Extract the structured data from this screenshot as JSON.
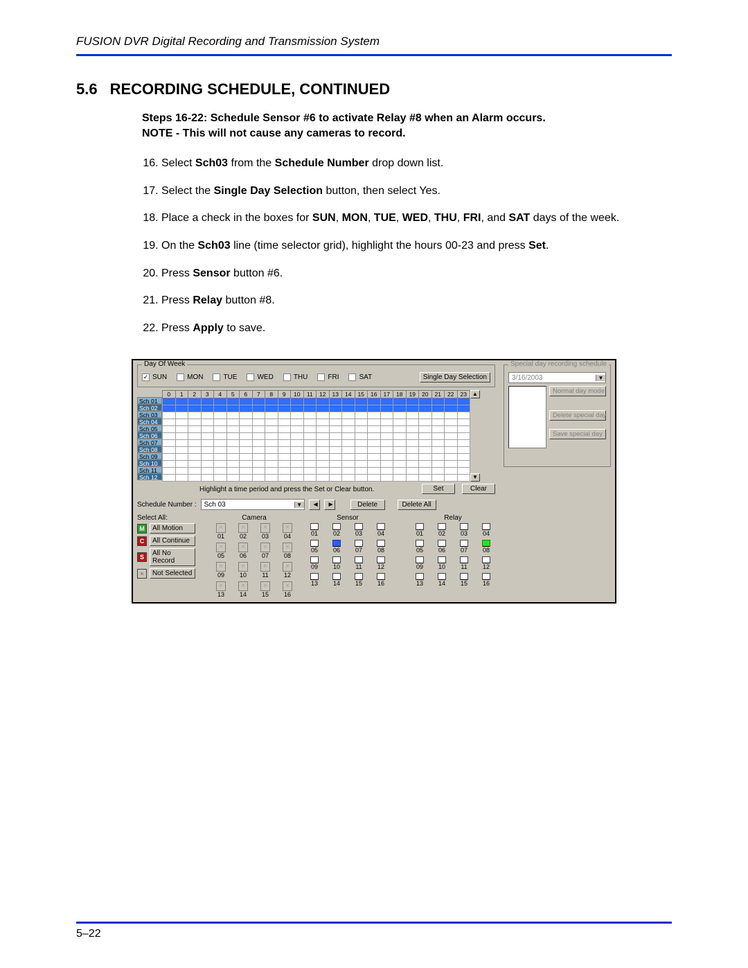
{
  "doc": {
    "header": "FUSION DVR Digital Recording and Transmission System",
    "section_num": "5.6",
    "section_title": "RECORDING SCHEDULE, CONTINUED",
    "note_l1": "Steps 16-22: Schedule Sensor #6 to activate Relay #8 when an Alarm occurs.",
    "note_l2": "NOTE - This will not cause any cameras to record.",
    "page_num": "5–22"
  },
  "steps": {
    "s16a": "Select ",
    "s16b": "Sch03",
    "s16c": " from the ",
    "s16d": "Schedule Number",
    "s16e": " drop down list.",
    "s17a": "Select the ",
    "s17b": "Single Day Selection",
    "s17c": " button, then select Yes.",
    "s18a": "Place a check in the boxes for ",
    "s18b": "SUN",
    "s18c": ", ",
    "s18d": "MON",
    "s18e": ", ",
    "s18f": "TUE",
    "s18g": ", ",
    "s18h": "WED",
    "s18i": ", ",
    "s18j": "THU",
    "s18k": ", ",
    "s18l": "FRI",
    "s18m": ", and ",
    "s18n": "SAT",
    "s18o": " days of the week.",
    "s19a": "On the ",
    "s19b": "Sch03",
    "s19c": " line (time selector grid), highlight the hours 00-23 and press ",
    "s19d": "Set",
    "s19e": ".",
    "s20a": "Press ",
    "s20b": "Sensor",
    "s20c": " button #6.",
    "s21a": "Press ",
    "s21b": "Relay",
    "s21c": " button #8.",
    "s22a": "Press ",
    "s22b": "Apply",
    "s22c": " to save."
  },
  "ui": {
    "group_day": "Day Of Week",
    "days": {
      "sun": "SUN",
      "mon": "MON",
      "tue": "TUE",
      "wed": "WED",
      "thu": "THU",
      "fri": "FRI",
      "sat": "SAT"
    },
    "single_day_btn": "Single Day Selection",
    "hours": [
      "0",
      "1",
      "2",
      "3",
      "4",
      "5",
      "6",
      "7",
      "8",
      "9",
      "10",
      "11",
      "12",
      "13",
      "14",
      "15",
      "16",
      "17",
      "18",
      "19",
      "20",
      "21",
      "22",
      "23"
    ],
    "sch_labels": [
      "Sch 01",
      "Sch 02",
      "Sch 03",
      "Sch 04",
      "Sch 05",
      "Sch 06",
      "Sch 07",
      "Sch 08",
      "Sch 09",
      "Sch 10",
      "Sch 11",
      "Sch 12"
    ],
    "blue_rows": [
      0,
      1
    ],
    "dark_rows": [
      1,
      3,
      5,
      7,
      9,
      11
    ],
    "hint": "Highlight a time period and press the Set or Clear button.",
    "set_btn": "Set",
    "clear_btn": "Clear",
    "sched_num_lbl": "Schedule Number :",
    "sched_num_val": "Sch 03",
    "delete_btn": "Delete",
    "delete_all_btn": "Delete All",
    "select_all_lbl": "Select All:",
    "camera_lbl": "Camera",
    "sensor_lbl": "Sensor",
    "relay_lbl": "Relay",
    "legend": {
      "m_lbl": "All Motion",
      "c_lbl": "All Continue",
      "s_lbl": "All No Record",
      "x_lbl": "Not Selected",
      "m": "M",
      "c": "C",
      "s": "S",
      "x": "×"
    },
    "cam_nums": [
      "01",
      "02",
      "03",
      "04",
      "05",
      "06",
      "07",
      "08",
      "09",
      "10",
      "11",
      "12",
      "13",
      "14",
      "15",
      "16"
    ],
    "sensor_on": 6,
    "relay_on": 8,
    "special": {
      "group": "Special day recording schedule",
      "date": "3/16/2003",
      "normal_btn": "Normal day mode",
      "delete_btn": "Delete special day",
      "save_btn": "Save special day"
    }
  }
}
